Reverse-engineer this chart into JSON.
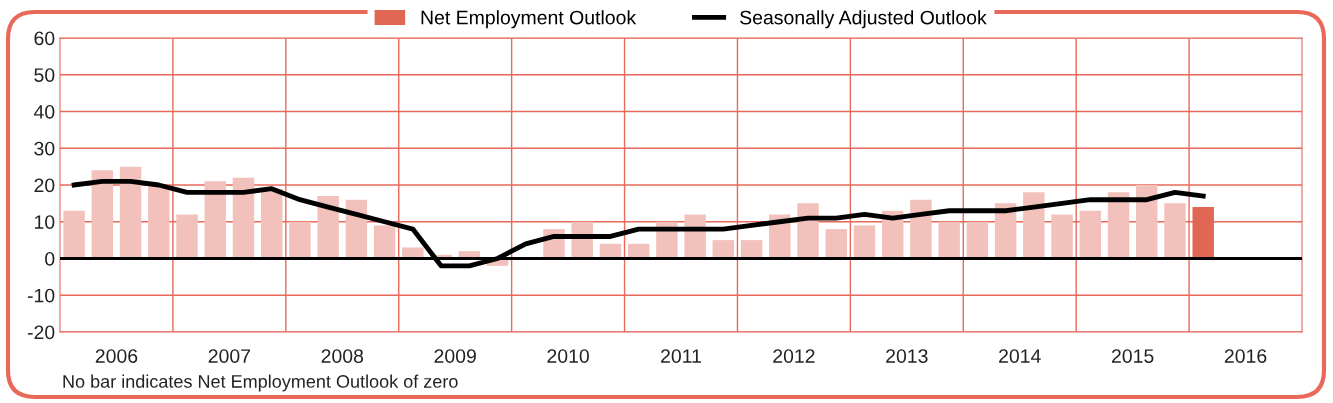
{
  "chart_data": {
    "type": "bar",
    "x": [
      2006.125,
      2006.375,
      2006.625,
      2006.875,
      2007.125,
      2007.375,
      2007.625,
      2007.875,
      2008.125,
      2008.375,
      2008.625,
      2008.875,
      2009.125,
      2009.375,
      2009.625,
      2009.875,
      2010.125,
      2010.375,
      2010.625,
      2010.875,
      2011.125,
      2011.375,
      2011.625,
      2011.875,
      2012.125,
      2012.375,
      2012.625,
      2012.875,
      2013.125,
      2013.375,
      2013.625,
      2013.875,
      2014.125,
      2014.375,
      2014.625,
      2014.875,
      2015.125,
      2015.375,
      2015.625,
      2015.875,
      2016.125
    ],
    "xlim": [
      2006,
      2017
    ],
    "xticks": [
      {
        "value": 2006.5,
        "label": "2006"
      },
      {
        "value": 2007.5,
        "label": "2007"
      },
      {
        "value": 2008.5,
        "label": "2008"
      },
      {
        "value": 2009.5,
        "label": "2009"
      },
      {
        "value": 2010.5,
        "label": "2010"
      },
      {
        "value": 2011.5,
        "label": "2011"
      },
      {
        "value": 2012.5,
        "label": "2012"
      },
      {
        "value": 2013.5,
        "label": "2013"
      },
      {
        "value": 2014.5,
        "label": "2014"
      },
      {
        "value": 2015.5,
        "label": "2015"
      },
      {
        "value": 2016.5,
        "label": "2016"
      }
    ],
    "ylim": [
      -20,
      60
    ],
    "yticks": [
      -20,
      -10,
      0,
      10,
      20,
      30,
      40,
      50,
      60
    ],
    "series": [
      {
        "name": "Net Employment Outlook",
        "color": "#e06753",
        "colors": [
          "#f2c1bb",
          "#f2c1bb",
          "#f2c1bb",
          "#f2c1bb",
          "#f2c1bb",
          "#f2c1bb",
          "#f2c1bb",
          "#f2c1bb",
          "#f2c1bb",
          "#f2c1bb",
          "#f2c1bb",
          "#f2c1bb",
          "#f2c1bb",
          "#f2c1bb",
          "#f2c1bb",
          "#f2c1bb",
          "#f2c1bb",
          "#f2c1bb",
          "#f2c1bb",
          "#f2c1bb",
          "#f2c1bb",
          "#f2c1bb",
          "#f2c1bb",
          "#f2c1bb",
          "#f2c1bb",
          "#f2c1bb",
          "#f2c1bb",
          "#f2c1bb",
          "#f2c1bb",
          "#f2c1bb",
          "#f2c1bb",
          "#f2c1bb",
          "#f2c1bb",
          "#f2c1bb",
          "#f2c1bb",
          "#f2c1bb",
          "#f2c1bb",
          "#f2c1bb",
          "#f2c1bb",
          "#f2c1bb",
          "#e06753"
        ],
        "values": [
          13,
          24,
          25,
          20,
          12,
          21,
          22,
          19,
          10,
          17,
          16,
          9,
          3,
          1,
          2,
          -2,
          0,
          8,
          10,
          4,
          4,
          10,
          12,
          5,
          5,
          12,
          15,
          8,
          9,
          13,
          16,
          10,
          10,
          15,
          18,
          12,
          13,
          18,
          20,
          15,
          14
        ]
      },
      {
        "name": "Seasonally Adjusted Outlook",
        "type": "line",
        "color": "#000000",
        "values": [
          20,
          21,
          21,
          20,
          18,
          18,
          18,
          19,
          16,
          14,
          12,
          10,
          8,
          -2,
          -2,
          0,
          4,
          6,
          6,
          6,
          8,
          8,
          8,
          8,
          9,
          10,
          11,
          11,
          12,
          11,
          12,
          13,
          13,
          13,
          14,
          15,
          16,
          16,
          16,
          18,
          17
        ]
      }
    ],
    "ref_lines": [
      {
        "axis": "y",
        "value": 0,
        "color": "#000000"
      },
      {
        "axis": "x",
        "value": 2007,
        "color": "#e8695a"
      },
      {
        "axis": "x",
        "value": 2008,
        "color": "#e8695a"
      },
      {
        "axis": "x",
        "value": 2009,
        "color": "#e8695a"
      },
      {
        "axis": "x",
        "value": 2010,
        "color": "#e8695a"
      },
      {
        "axis": "x",
        "value": 2011,
        "color": "#e8695a"
      },
      {
        "axis": "x",
        "value": 2012,
        "color": "#e8695a"
      },
      {
        "axis": "x",
        "value": 2013,
        "color": "#e8695a"
      },
      {
        "axis": "x",
        "value": 2014,
        "color": "#e8695a"
      },
      {
        "axis": "x",
        "value": 2015,
        "color": "#e8695a"
      },
      {
        "axis": "x",
        "value": 2016,
        "color": "#e8695a"
      }
    ],
    "grid": "y",
    "legend": "top",
    "marker": "none",
    "line_style": "solid",
    "annotations": [
      "No bar indicates Net Employment Outlook of zero"
    ]
  }
}
